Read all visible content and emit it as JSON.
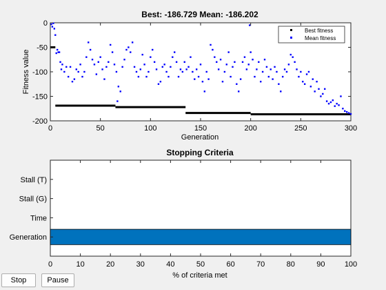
{
  "buttons": {
    "stop": "Stop",
    "pause": "Pause"
  },
  "chart_data": [
    {
      "type": "scatter",
      "title": "Best: -186.729 Mean: -186.202",
      "xlabel": "Generation",
      "ylabel": "Fitness value",
      "xlim": [
        0,
        300
      ],
      "ylim": [
        -200,
        0
      ],
      "xticks": [
        0,
        50,
        100,
        150,
        200,
        250,
        300
      ],
      "yticks": [
        0,
        -50,
        -100,
        -150,
        -200
      ],
      "legend": {
        "position": "top-right",
        "entries": [
          "Best fitness",
          "Mean fitness"
        ]
      },
      "colors": {
        "best": "#000000",
        "mean": "#0000ff"
      },
      "series": [
        {
          "name": "Best fitness",
          "segments": [
            {
              "x": [
                0,
                5
              ],
              "y": -50
            },
            {
              "x": [
                5,
                65
              ],
              "y": -169
            },
            {
              "x": [
                65,
                135
              ],
              "y": -172
            },
            {
              "x": [
                135,
                200
              ],
              "y": -184
            },
            {
              "x": [
                200,
                300
              ],
              "y": -186.7
            }
          ]
        },
        {
          "name": "Mean fitness",
          "points": [
            [
              1,
              -3
            ],
            [
              2,
              -8
            ],
            [
              3,
              -1
            ],
            [
              4,
              -12
            ],
            [
              5,
              -25
            ],
            [
              6,
              -62
            ],
            [
              7,
              -55
            ],
            [
              8,
              -60
            ],
            [
              9,
              -60
            ],
            [
              10,
              -80
            ],
            [
              11,
              -95
            ],
            [
              12,
              -85
            ],
            [
              14,
              -100
            ],
            [
              16,
              -90
            ],
            [
              18,
              -110
            ],
            [
              20,
              -90
            ],
            [
              22,
              -120
            ],
            [
              24,
              -115
            ],
            [
              26,
              -95
            ],
            [
              28,
              -100
            ],
            [
              30,
              -85
            ],
            [
              32,
              -110
            ],
            [
              34,
              -100
            ],
            [
              36,
              -70
            ],
            [
              38,
              -40
            ],
            [
              40,
              -55
            ],
            [
              42,
              -75
            ],
            [
              44,
              -85
            ],
            [
              46,
              -105
            ],
            [
              48,
              -80
            ],
            [
              50,
              -70
            ],
            [
              52,
              -95
            ],
            [
              54,
              -115
            ],
            [
              56,
              -90
            ],
            [
              58,
              -80
            ],
            [
              60,
              -45
            ],
            [
              62,
              -60
            ],
            [
              64,
              -85
            ],
            [
              66,
              -100
            ],
            [
              67,
              -160
            ],
            [
              68,
              -130
            ],
            [
              70,
              -140
            ],
            [
              72,
              -90
            ],
            [
              74,
              -75
            ],
            [
              76,
              -55
            ],
            [
              78,
              -50
            ],
            [
              80,
              -60
            ],
            [
              82,
              -40
            ],
            [
              84,
              -90
            ],
            [
              86,
              -100
            ],
            [
              88,
              -110
            ],
            [
              90,
              -95
            ],
            [
              92,
              -65
            ],
            [
              94,
              -85
            ],
            [
              96,
              -110
            ],
            [
              98,
              -100
            ],
            [
              100,
              -70
            ],
            [
              102,
              -55
            ],
            [
              104,
              -80
            ],
            [
              106,
              -95
            ],
            [
              108,
              -125
            ],
            [
              110,
              -120
            ],
            [
              112,
              -90
            ],
            [
              114,
              -85
            ],
            [
              116,
              -100
            ],
            [
              118,
              -110
            ],
            [
              120,
              -90
            ],
            [
              122,
              -70
            ],
            [
              124,
              -60
            ],
            [
              126,
              -80
            ],
            [
              128,
              -110
            ],
            [
              130,
              -95
            ],
            [
              132,
              -100
            ],
            [
              134,
              -80
            ],
            [
              136,
              -95
            ],
            [
              138,
              -90
            ],
            [
              140,
              -70
            ],
            [
              142,
              -100
            ],
            [
              144,
              -115
            ],
            [
              146,
              -95
            ],
            [
              148,
              -110
            ],
            [
              150,
              -85
            ],
            [
              152,
              -120
            ],
            [
              154,
              -140
            ],
            [
              156,
              -100
            ],
            [
              158,
              -115
            ],
            [
              160,
              -45
            ],
            [
              162,
              -55
            ],
            [
              164,
              -70
            ],
            [
              166,
              -80
            ],
            [
              168,
              -95
            ],
            [
              170,
              -75
            ],
            [
              172,
              -120
            ],
            [
              174,
              -100
            ],
            [
              176,
              -85
            ],
            [
              178,
              -60
            ],
            [
              180,
              -110
            ],
            [
              182,
              -90
            ],
            [
              184,
              -80
            ],
            [
              186,
              -125
            ],
            [
              188,
              -140
            ],
            [
              190,
              -115
            ],
            [
              192,
              -80
            ],
            [
              194,
              -70
            ],
            [
              196,
              -95
            ],
            [
              198,
              -85
            ],
            [
              199,
              -5
            ],
            [
              200,
              -60
            ],
            [
              202,
              -75
            ],
            [
              204,
              -110
            ],
            [
              206,
              -95
            ],
            [
              208,
              -80
            ],
            [
              210,
              -120
            ],
            [
              212,
              -100
            ],
            [
              214,
              -75
            ],
            [
              216,
              -90
            ],
            [
              218,
              -110
            ],
            [
              220,
              -95
            ],
            [
              222,
              -115
            ],
            [
              224,
              -90
            ],
            [
              226,
              -100
            ],
            [
              228,
              -125
            ],
            [
              230,
              -140
            ],
            [
              232,
              -110
            ],
            [
              234,
              -95
            ],
            [
              236,
              -100
            ],
            [
              238,
              -85
            ],
            [
              240,
              -65
            ],
            [
              242,
              -70
            ],
            [
              244,
              -80
            ],
            [
              246,
              -95
            ],
            [
              248,
              -110
            ],
            [
              250,
              -100
            ],
            [
              252,
              -120
            ],
            [
              254,
              -125
            ],
            [
              256,
              -105
            ],
            [
              258,
              -100
            ],
            [
              260,
              -130
            ],
            [
              262,
              -115
            ],
            [
              264,
              -140
            ],
            [
              266,
              -120
            ],
            [
              268,
              -135
            ],
            [
              270,
              -150
            ],
            [
              272,
              -145
            ],
            [
              274,
              -135
            ],
            [
              276,
              -160
            ],
            [
              278,
              -165
            ],
            [
              280,
              -162
            ],
            [
              282,
              -158
            ],
            [
              284,
              -170
            ],
            [
              286,
              -165
            ],
            [
              288,
              -168
            ],
            [
              290,
              -150
            ],
            [
              292,
              -175
            ],
            [
              294,
              -180
            ],
            [
              296,
              -182
            ],
            [
              298,
              -184
            ],
            [
              300,
              -186
            ]
          ]
        }
      ]
    },
    {
      "type": "bar",
      "orientation": "horizontal",
      "title": "Stopping Criteria",
      "xlabel": "% of criteria met",
      "xlim": [
        0,
        100
      ],
      "xticks": [
        0,
        10,
        20,
        30,
        40,
        50,
        60,
        70,
        80,
        90,
        100
      ],
      "categories": [
        "Stall (T)",
        "Stall (G)",
        "Time",
        "Generation"
      ],
      "values": [
        0,
        0,
        0,
        100
      ],
      "color": "#0072bd"
    }
  ]
}
